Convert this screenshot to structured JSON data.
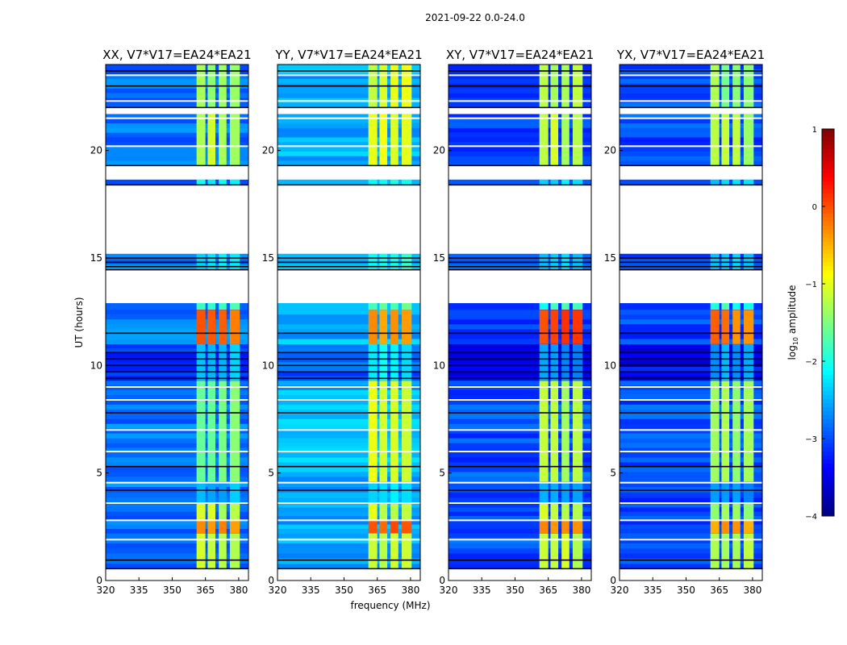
{
  "chart_data": {
    "type": "heatmap",
    "title": "2021-09-22 0.0-24.0",
    "xlabel": "frequency (MHz)",
    "ylabel": "UT (hours)",
    "xlim": [
      320,
      384.4
    ],
    "ylim": [
      0,
      24
    ],
    "xticks": [
      320,
      335,
      350,
      365,
      380
    ],
    "yticks": [
      0,
      5,
      10,
      15,
      20
    ],
    "colorbar": {
      "label_main": "log",
      "label_sub": "10",
      "label_rest": " amplitude",
      "range": [
        -4,
        1
      ],
      "ticks": [
        1,
        0,
        -1,
        -2,
        -3,
        -4
      ],
      "colormap": "jet"
    },
    "bright_subbands_mhz": [
      [
        361,
        365
      ],
      [
        366,
        369.5
      ],
      [
        371,
        374.5
      ],
      [
        376,
        380.5
      ]
    ],
    "flagged_hours": [
      [
        0,
        0.55
      ],
      [
        12.9,
        14.45
      ],
      [
        15.2,
        18.4
      ],
      [
        18.65,
        19.3
      ],
      [
        21.7,
        22.0
      ]
    ],
    "white_lines_hours": [
      1.9,
      2.8,
      3.6,
      4.55,
      6.0,
      7.0,
      8.4,
      9.0,
      20.2,
      21.5,
      22.3,
      23.5
    ],
    "black_lines_hours": [
      0.95,
      4.2,
      5.3,
      7.8,
      9.4,
      9.7,
      10.0,
      10.3,
      10.6,
      11.5,
      14.6,
      14.8,
      15.0,
      23.0,
      23.7
    ],
    "panels": [
      {
        "title": "XX, V7*V17=EA24*EA21",
        "base_level": -2.8,
        "band_levels": {
          "a": -1.2,
          "peak": -0.3,
          "b": -2.5,
          "c": -1.5,
          "d": -2.4,
          "e": -0.1,
          "f": -1.8,
          "g": -2.2,
          "h": -1.2,
          "i": -1.3
        }
      },
      {
        "title": "YY, V7*V17=EA24*EA21",
        "base_level": -2.5,
        "band_levels": {
          "a": -1.1,
          "peak": -0.1,
          "b": -2.3,
          "c": -1.1,
          "d": -2.2,
          "e": -0.3,
          "f": -1.7,
          "g": -2.0,
          "h": -0.9,
          "i": -1.1
        }
      },
      {
        "title": "XY, V7*V17=EA24*EA21",
        "base_level": -3.0,
        "band_levels": {
          "a": -1.2,
          "peak": -0.4,
          "b": -2.6,
          "c": -1.2,
          "d": -2.6,
          "e": 0.0,
          "f": -1.9,
          "g": -2.3,
          "h": -1.2,
          "i": -1.3
        }
      },
      {
        "title": "YX, V7*V17=EA24*EA21",
        "base_level": -3.0,
        "band_levels": {
          "a": -1.3,
          "peak": -0.4,
          "b": -2.6,
          "c": -1.3,
          "d": -2.6,
          "e": -0.2,
          "f": -1.9,
          "g": -2.3,
          "h": -1.3,
          "i": -1.4
        }
      }
    ],
    "time_segments": [
      {
        "from": 0.55,
        "to": 2.2,
        "key": "a"
      },
      {
        "from": 2.2,
        "to": 2.8,
        "key": "peak"
      },
      {
        "from": 2.8,
        "to": 3.6,
        "key": "a"
      },
      {
        "from": 3.6,
        "to": 4.6,
        "key": "b"
      },
      {
        "from": 4.6,
        "to": 9.3,
        "key": "c"
      },
      {
        "from": 9.3,
        "to": 11.0,
        "key": "d"
      },
      {
        "from": 11.0,
        "to": 12.6,
        "key": "e"
      },
      {
        "from": 12.6,
        "to": 12.9,
        "key": "f"
      },
      {
        "from": 14.45,
        "to": 15.2,
        "key": "g"
      },
      {
        "from": 18.4,
        "to": 18.65,
        "key": "g"
      },
      {
        "from": 19.3,
        "to": 21.7,
        "key": "h"
      },
      {
        "from": 22.0,
        "to": 24.0,
        "key": "i"
      }
    ]
  }
}
